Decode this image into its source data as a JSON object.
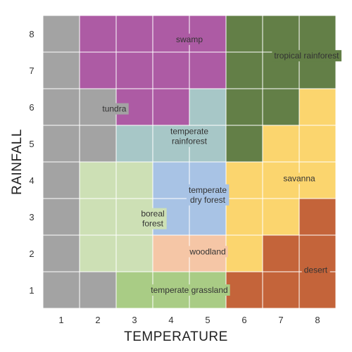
{
  "chart_data": {
    "type": "heatmap",
    "x_label": "TEMPERATURE",
    "y_label": "RAINFALL",
    "x_ticks": [
      "1",
      "2",
      "3",
      "4",
      "5",
      "6",
      "7",
      "8"
    ],
    "y_ticks": [
      "1",
      "2",
      "3",
      "4",
      "5",
      "6",
      "7",
      "8"
    ],
    "colors": {
      "tundra": "#a3a3a3",
      "swamp": "#ad5ba4",
      "tropical_rainforest": "#637f47",
      "temperate_rainforest": "#a7c7c7",
      "savanna": "#fbd56e",
      "boreal_forest": "#cde0b5",
      "temperate_dry_forest": "#a8c3e5",
      "woodland": "#f5c6a6",
      "desert": "#c4643a",
      "temperate_grassland": "#a9cc85"
    },
    "grid": [
      [
        "tundra",
        "swamp",
        "swamp",
        "swamp",
        "swamp",
        "tropical_rainforest",
        "tropical_rainforest",
        "tropical_rainforest"
      ],
      [
        "tundra",
        "swamp",
        "swamp",
        "swamp",
        "swamp",
        "tropical_rainforest",
        "tropical_rainforest",
        "tropical_rainforest"
      ],
      [
        "tundra",
        "tundra",
        "swamp",
        "swamp",
        "temperate_rainforest",
        "tropical_rainforest",
        "tropical_rainforest",
        "savanna"
      ],
      [
        "tundra",
        "tundra",
        "temperate_rainforest",
        "temperate_rainforest",
        "temperate_rainforest",
        "tropical_rainforest",
        "savanna",
        "savanna"
      ],
      [
        "tundra",
        "boreal_forest",
        "boreal_forest",
        "temperate_dry_forest",
        "temperate_dry_forest",
        "savanna",
        "savanna",
        "savanna"
      ],
      [
        "tundra",
        "boreal_forest",
        "boreal_forest",
        "temperate_dry_forest",
        "temperate_dry_forest",
        "savanna",
        "savanna",
        "desert"
      ],
      [
        "tundra",
        "boreal_forest",
        "boreal_forest",
        "woodland",
        "woodland",
        "savanna",
        "desert",
        "desert"
      ],
      [
        "tundra",
        "tundra",
        "temperate_grassland",
        "temperate_grassland",
        "temperate_grassland",
        "desert",
        "desert",
        "desert"
      ]
    ],
    "region_labels": [
      {
        "biome": "swamp",
        "lines": [
          "swamp"
        ],
        "x": 4,
        "y": 7.35
      },
      {
        "biome": "tropical_rainforest",
        "lines": [
          "tropical rainforest"
        ],
        "x": 7.2,
        "y": 6.9
      },
      {
        "biome": "tundra",
        "lines": [
          "tundra"
        ],
        "x": 1.95,
        "y": 5.45
      },
      {
        "biome": "temperate_rainforest",
        "lines": [
          "temperate",
          "rainforest"
        ],
        "x": 4,
        "y": 4.7
      },
      {
        "biome": "savanna",
        "lines": [
          "savanna"
        ],
        "x": 7,
        "y": 3.55
      },
      {
        "biome": "temperate_dry_forest",
        "lines": [
          "temperate",
          "dry forest"
        ],
        "x": 4.5,
        "y": 3.1
      },
      {
        "biome": "boreal_forest",
        "lines": [
          "boreal",
          "forest"
        ],
        "x": 3,
        "y": 2.45
      },
      {
        "biome": "woodland",
        "lines": [
          "woodland"
        ],
        "x": 4.5,
        "y": 1.55
      },
      {
        "biome": "desert",
        "lines": [
          "desert"
        ],
        "x": 7.45,
        "y": 1.05
      },
      {
        "biome": "temperate_grassland",
        "lines": [
          "temperate grassland"
        ],
        "x": 4,
        "y": 0.5
      }
    ]
  }
}
